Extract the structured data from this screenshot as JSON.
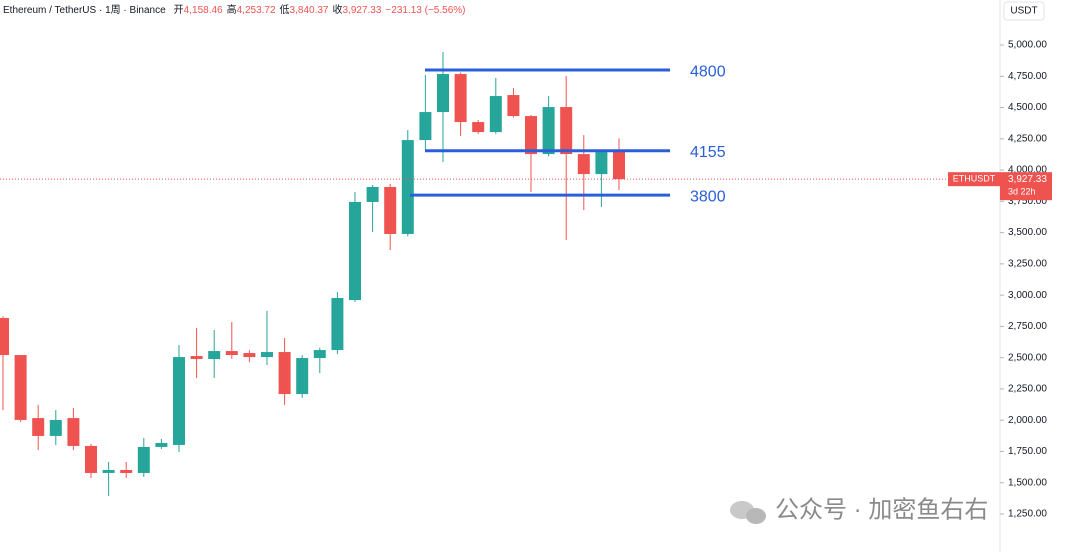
{
  "chart_data": {
    "type": "candlestick",
    "header": {
      "symbol": "Ethereum / TetherUS · 1周 · Binance",
      "open_label": "开",
      "open": "4,158.46",
      "high_label": "高",
      "high": "4,253.72",
      "low_label": "低",
      "low": "3,840.37",
      "close_label": "收",
      "close": "3,927.33",
      "change": "−231.13 (−5.56%)"
    },
    "axis_label": "USDT",
    "ylim": [
      1042,
      5360
    ],
    "yticks": [
      {
        "value": 1250,
        "label": "1,250.00"
      },
      {
        "value": 1500,
        "label": "1,500.00"
      },
      {
        "value": 1750,
        "label": "1,750.00"
      },
      {
        "value": 2000,
        "label": "2,000.00"
      },
      {
        "value": 2250,
        "label": "2,250.00"
      },
      {
        "value": 2500,
        "label": "2,500.00"
      },
      {
        "value": 2750,
        "label": "2,750.00"
      },
      {
        "value": 3000,
        "label": "3,000.00"
      },
      {
        "value": 3250,
        "label": "3,250.00"
      },
      {
        "value": 3500,
        "label": "3,500.00"
      },
      {
        "value": 3750,
        "label": "3,750.00"
      },
      {
        "value": 4000,
        "label": "4,000.00"
      },
      {
        "value": 4250,
        "label": "4,250.00"
      },
      {
        "value": 4500,
        "label": "4,500.00"
      },
      {
        "value": 4750,
        "label": "4,750.00"
      },
      {
        "value": 5000,
        "label": "5,000.00"
      }
    ],
    "open": [
      2817,
      2521,
      2017,
      1874,
      2017,
      1794,
      1578,
      1602,
      1578,
      1786,
      1802,
      2513,
      2489,
      2553,
      2537,
      2505,
      2545,
      2209,
      2497,
      2561,
      2961,
      3745,
      3865,
      3489,
      4240,
      4464,
      4768,
      4384,
      4304,
      4600,
      4432,
      4128,
      4504,
      4128,
      3968,
      4158.46
    ],
    "high": [
      2830,
      2521,
      2122,
      2081,
      2097,
      1810,
      1666,
      1666,
      1857,
      1850,
      2601,
      2737,
      2721,
      2785,
      2560,
      2873,
      2657,
      2520,
      2580,
      3025,
      3825,
      3881,
      3890,
      4320,
      4760,
      4944,
      4780,
      4400,
      4736,
      4656,
      4440,
      4592,
      4752,
      4280,
      4160,
      4253.72
    ],
    "low": [
      2081,
      1985,
      1762,
      1801,
      1762,
      1538,
      1394,
      1538,
      1546,
      1770,
      1746,
      2337,
      2337,
      2490,
      2465,
      2441,
      2122,
      2180,
      2377,
      2530,
      2945,
      3505,
      3361,
      3470,
      4160,
      4064,
      4272,
      4290,
      4290,
      4420,
      3825,
      4110,
      3441,
      3681,
      3705,
      3840.37
    ],
    "close": [
      2521,
      2002,
      1874,
      2002,
      1794,
      1578,
      1602,
      1578,
      1786,
      1818,
      2505,
      2489,
      2553,
      2521,
      2505,
      2545,
      2209,
      2497,
      2561,
      2977,
      3745,
      3865,
      3489,
      4240,
      4464,
      4768,
      4384,
      4304,
      4592,
      4432,
      4128,
      4504,
      4128,
      3968,
      4144,
      3927.33
    ],
    "up_color": "#26a69a",
    "down_color": "#ef5350",
    "levels": [
      4800,
      4155,
      3800
    ],
    "level_color": "#2b5fd9",
    "last_price": {
      "value": 3927.33,
      "label": "3,927.33",
      "symbol": "ETHUSDT",
      "countdown": "3d 22h"
    },
    "watermark": "公众号 · 加密鱼右右"
  }
}
